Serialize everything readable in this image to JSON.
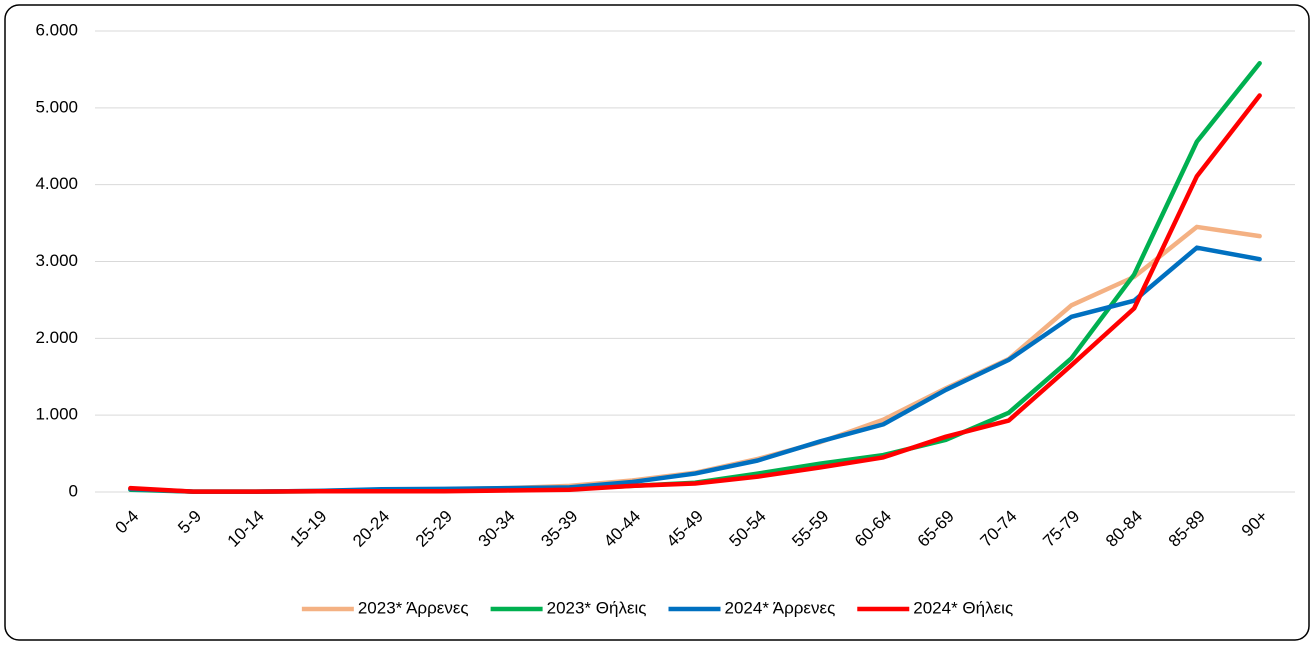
{
  "chart_data": {
    "type": "line",
    "categories": [
      "0-4",
      "5-9",
      "10-14",
      "15-19",
      "20-24",
      "25-29",
      "30-34",
      "35-39",
      "40-44",
      "45-49",
      "50-54",
      "55-59",
      "60-64",
      "65-69",
      "70-74",
      "75-79",
      "80-84",
      "85-89",
      "90+"
    ],
    "series": [
      {
        "name": "2023* Άρρενες",
        "color": "#f4b183",
        "values": [
          40,
          5,
          5,
          15,
          30,
          35,
          50,
          80,
          150,
          250,
          430,
          650,
          940,
          1350,
          1730,
          2430,
          2800,
          3450,
          3330
        ]
      },
      {
        "name": "2023* Θήλεις",
        "color": "#00b050",
        "values": [
          30,
          5,
          5,
          10,
          15,
          15,
          25,
          40,
          80,
          120,
          240,
          370,
          480,
          680,
          1030,
          1740,
          2830,
          4560,
          5580
        ]
      },
      {
        "name": "2024* Άρρενες",
        "color": "#0070c0",
        "values": [
          40,
          5,
          5,
          15,
          35,
          40,
          50,
          60,
          130,
          240,
          410,
          660,
          880,
          1330,
          1720,
          2280,
          2490,
          3180,
          3030
        ]
      },
      {
        "name": "2024* Θήλεις",
        "color": "#ff0000",
        "values": [
          50,
          5,
          5,
          10,
          10,
          10,
          20,
          30,
          80,
          110,
          200,
          320,
          450,
          720,
          930,
          1650,
          2390,
          4110,
          5160
        ]
      }
    ],
    "ylim": [
      0,
      6000
    ],
    "yticks": [
      0,
      {
        "value": 1000,
        "label": "1.000"
      },
      {
        "value": 2000,
        "label": "2.000"
      },
      {
        "value": 3000,
        "label": "3.000"
      },
      {
        "value": 4000,
        "label": "4.000"
      },
      {
        "value": 5000,
        "label": "5.000"
      },
      {
        "value": 6000,
        "label": "6.000"
      }
    ],
    "grid": true,
    "legend": "bottom"
  }
}
